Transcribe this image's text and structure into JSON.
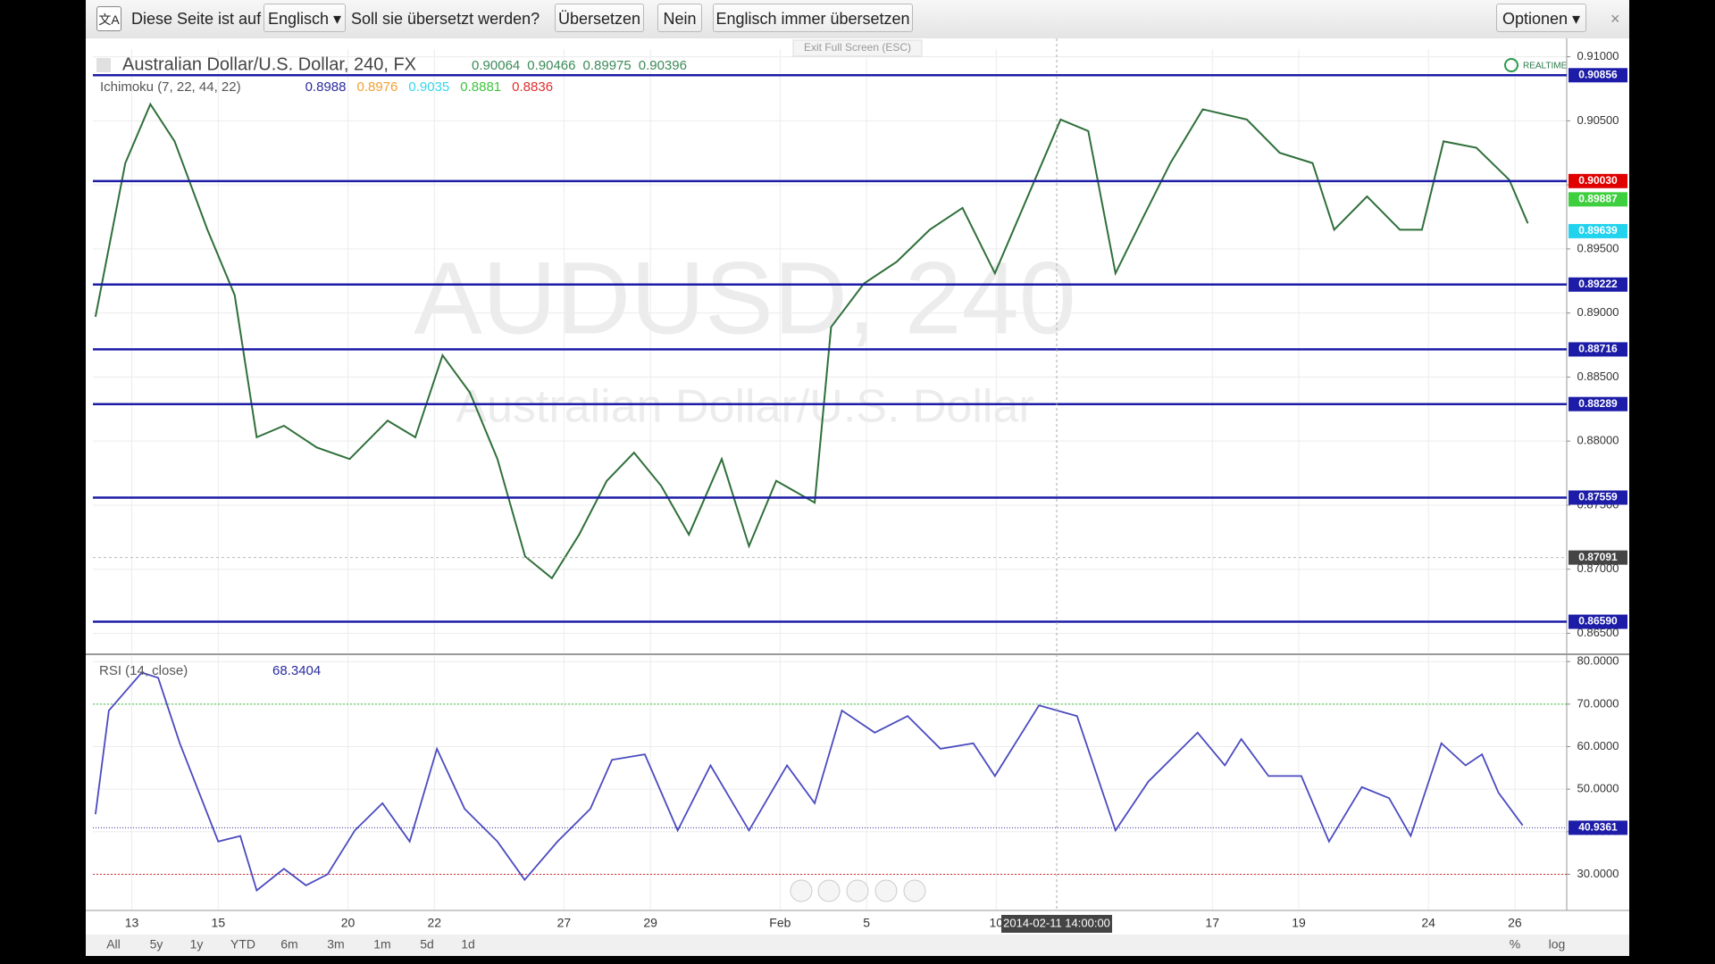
{
  "translate_bar": {
    "prefix": "Diese Seite ist auf",
    "language": "Englisch",
    "question": "Soll sie übersetzt werden?",
    "buttons": [
      "Übersetzen",
      "Nein",
      "Englisch immer übersetzen"
    ],
    "options": "Optionen",
    "close": "×"
  },
  "fullscreen_hint": "Exit Full Screen (ESC)",
  "chart_data": {
    "type": "line",
    "title": "Australian Dollar/U.S. Dollar, 240, FX",
    "ohlc_text": [
      "0.90064",
      "0.90466",
      "0.89975",
      "0.90396"
    ],
    "indicator": "Ichimoku (7, 22, 44, 22)",
    "indicator_values": [
      {
        "text": "0.8988",
        "color": "#2b2b9e"
      },
      {
        "text": "0.8976",
        "color": "#f0a030"
      },
      {
        "text": "0.9035",
        "color": "#35d6ee"
      },
      {
        "text": "0.8881",
        "color": "#3fc43f"
      },
      {
        "text": "0.8836",
        "color": "#e03030"
      }
    ],
    "realtime": "REALTIME",
    "watermark": "AUDUSD, 240",
    "watermark_sub": "Australian Dollar/U.S. Dollar",
    "series": [
      {
        "color": "#2f6f3a",
        "x": [
          -0.84,
          -0.15,
          0.43,
          0.99,
          1.75,
          2.38,
          2.89,
          3.52,
          4.28,
          5.04,
          5.92,
          6.56,
          7.19,
          7.82,
          8.46,
          9.1,
          9.72,
          10.35,
          10.99,
          11.62,
          12.25,
          12.89,
          13.65,
          14.28,
          14.91,
          15.8,
          16.18,
          16.94,
          17.7,
          18.46,
          19.22,
          19.97,
          20.73,
          21.49,
          22.13,
          22.76,
          23.39,
          24.03,
          24.78,
          25.8,
          26.56,
          27.32,
          27.82,
          28.58,
          29.34,
          29.85,
          30.35,
          31.11,
          31.87,
          32.3
        ],
        "values": [
          0.8897,
          0.9017,
          0.9063,
          0.9034,
          0.8965,
          0.8914,
          0.8803,
          0.8812,
          0.8795,
          0.8786,
          0.8816,
          0.8803,
          0.8867,
          0.8838,
          0.8786,
          0.871,
          0.8693,
          0.8727,
          0.8769,
          0.8791,
          0.8765,
          0.8727,
          0.8786,
          0.8718,
          0.8769,
          0.8752,
          0.8889,
          0.8923,
          0.894,
          0.8965,
          0.8982,
          0.8931,
          0.8991,
          0.9051,
          0.9042,
          0.8931,
          0.8974,
          0.9017,
          0.9059,
          0.9051,
          0.9025,
          0.9017,
          0.8965,
          0.8991,
          0.8965,
          0.8965,
          0.9034,
          0.9029,
          0.9004,
          0.897
        ]
      }
    ],
    "xlim": [
      -0.9,
      33.2
    ],
    "xticks": [
      {
        "value": 0,
        "label": "13"
      },
      {
        "value": 2,
        "label": "15"
      },
      {
        "value": 5,
        "label": "20"
      },
      {
        "value": 7,
        "label": "22"
      },
      {
        "value": 10,
        "label": "27"
      },
      {
        "value": 12,
        "label": "29"
      },
      {
        "value": 15,
        "label": "Feb"
      },
      {
        "value": 17,
        "label": "5"
      },
      {
        "value": 20,
        "label": "10"
      },
      {
        "value": 25,
        "label": "17"
      },
      {
        "value": 27,
        "label": "19"
      },
      {
        "value": 30,
        "label": "24"
      },
      {
        "value": 32,
        "label": "26"
      }
    ],
    "ylim": [
      0.8635,
      0.9106
    ],
    "yticks": [
      {
        "value": 0.865,
        "label": "0.86500"
      },
      {
        "value": 0.87,
        "label": "0.87000"
      },
      {
        "value": 0.875,
        "label": "0.87500"
      },
      {
        "value": 0.88,
        "label": "0.88000"
      },
      {
        "value": 0.885,
        "label": "0.88500"
      },
      {
        "value": 0.89,
        "label": "0.89000"
      },
      {
        "value": 0.895,
        "label": "0.89500"
      },
      {
        "value": 0.9,
        "label": "0.90000"
      },
      {
        "value": 0.905,
        "label": "0.90500"
      },
      {
        "value": 0.91,
        "label": "0.91000"
      }
    ],
    "grid": true,
    "levels": [
      {
        "price": 0.90856,
        "color": "#1c1ca8",
        "line": true
      },
      {
        "price": {
          "value": 0.9003,
          "label": "0.90030"
        },
        "color": "#e00000",
        "line": true
      },
      {
        "price": 0.89887,
        "color": "#3ecf3e",
        "line": false
      },
      {
        "price": 0.89639,
        "color": "#22d3ee",
        "line": false
      },
      {
        "price": 0.89222,
        "color": "#1c1ca8",
        "line": true
      },
      {
        "price": 0.88716,
        "color": "#1c1ca8",
        "line": true
      },
      {
        "price": 0.88289,
        "color": "#1c1ca8",
        "line": true
      },
      {
        "price": 0.87559,
        "color": "#1c1ca8",
        "line": true
      },
      {
        "price": {
          "value": 0.8659,
          "label": "0.86590"
        },
        "color": "#1c1ca8",
        "line": true
      }
    ],
    "crosshair": {
      "x": 21.4,
      "label": "2014-02-11 14:00:00",
      "y": 0.87091
    },
    "rsi": {
      "label": "RSI (14, close)",
      "value_text": "68.3404",
      "color": "#4a4ac0",
      "x": [
        -0.84,
        -0.53,
        0.23,
        0.61,
        1.11,
        2,
        2.51,
        2.89,
        3.52,
        4.03,
        4.53,
        5.16,
        5.8,
        6.43,
        7.06,
        7.7,
        8.46,
        9.09,
        9.85,
        10.61,
        11.11,
        11.87,
        12.63,
        13.39,
        14.28,
        15.16,
        15.8,
        16.43,
        17.19,
        17.95,
        18.71,
        19.47,
        19.97,
        20.99,
        21.87,
        22.76,
        23.52,
        24.66,
        25.29,
        25.67,
        26.3,
        27.06,
        27.7,
        28.46,
        29.09,
        29.59,
        30.3,
        30.86,
        31.24,
        31.62,
        32.18
      ],
      "values": [
        44.1,
        68.5,
        77.4,
        76.2,
        60.8,
        37.7,
        39,
        26.2,
        31.3,
        27.4,
        30,
        40.3,
        46.7,
        37.7,
        59.5,
        45.4,
        37.7,
        28.7,
        37.7,
        45.4,
        56.9,
        58.2,
        40.3,
        55.6,
        40.3,
        55.6,
        46.7,
        68.5,
        63.3,
        67.2,
        59.5,
        60.8,
        53.1,
        69.7,
        67.2,
        40.3,
        51.8,
        63.3,
        55.6,
        61.8,
        53.1,
        53.1,
        37.7,
        50.5,
        47.9,
        39,
        60.8,
        55.6,
        58.2,
        49.2,
        41.5
      ],
      "ylim": [
        21.5,
        81.3
      ],
      "yticks": [
        {
          "value": 30,
          "label": "30.0000"
        },
        {
          "value": 40,
          "label": "40.0000"
        },
        {
          "value": 50,
          "label": "50.0000"
        },
        {
          "value": 60,
          "label": "60.0000"
        },
        {
          "value": 70,
          "label": "70.0000"
        },
        {
          "value": 80,
          "label": "80.0000"
        }
      ],
      "overbought": 70,
      "oversold": 30,
      "current": 40.9361
    },
    "ranges": [
      "All",
      "5y",
      "1y",
      "YTD",
      "6m",
      "3m",
      "1m",
      "5d",
      "1d"
    ],
    "scale_buttons": [
      "%",
      "log"
    ]
  }
}
